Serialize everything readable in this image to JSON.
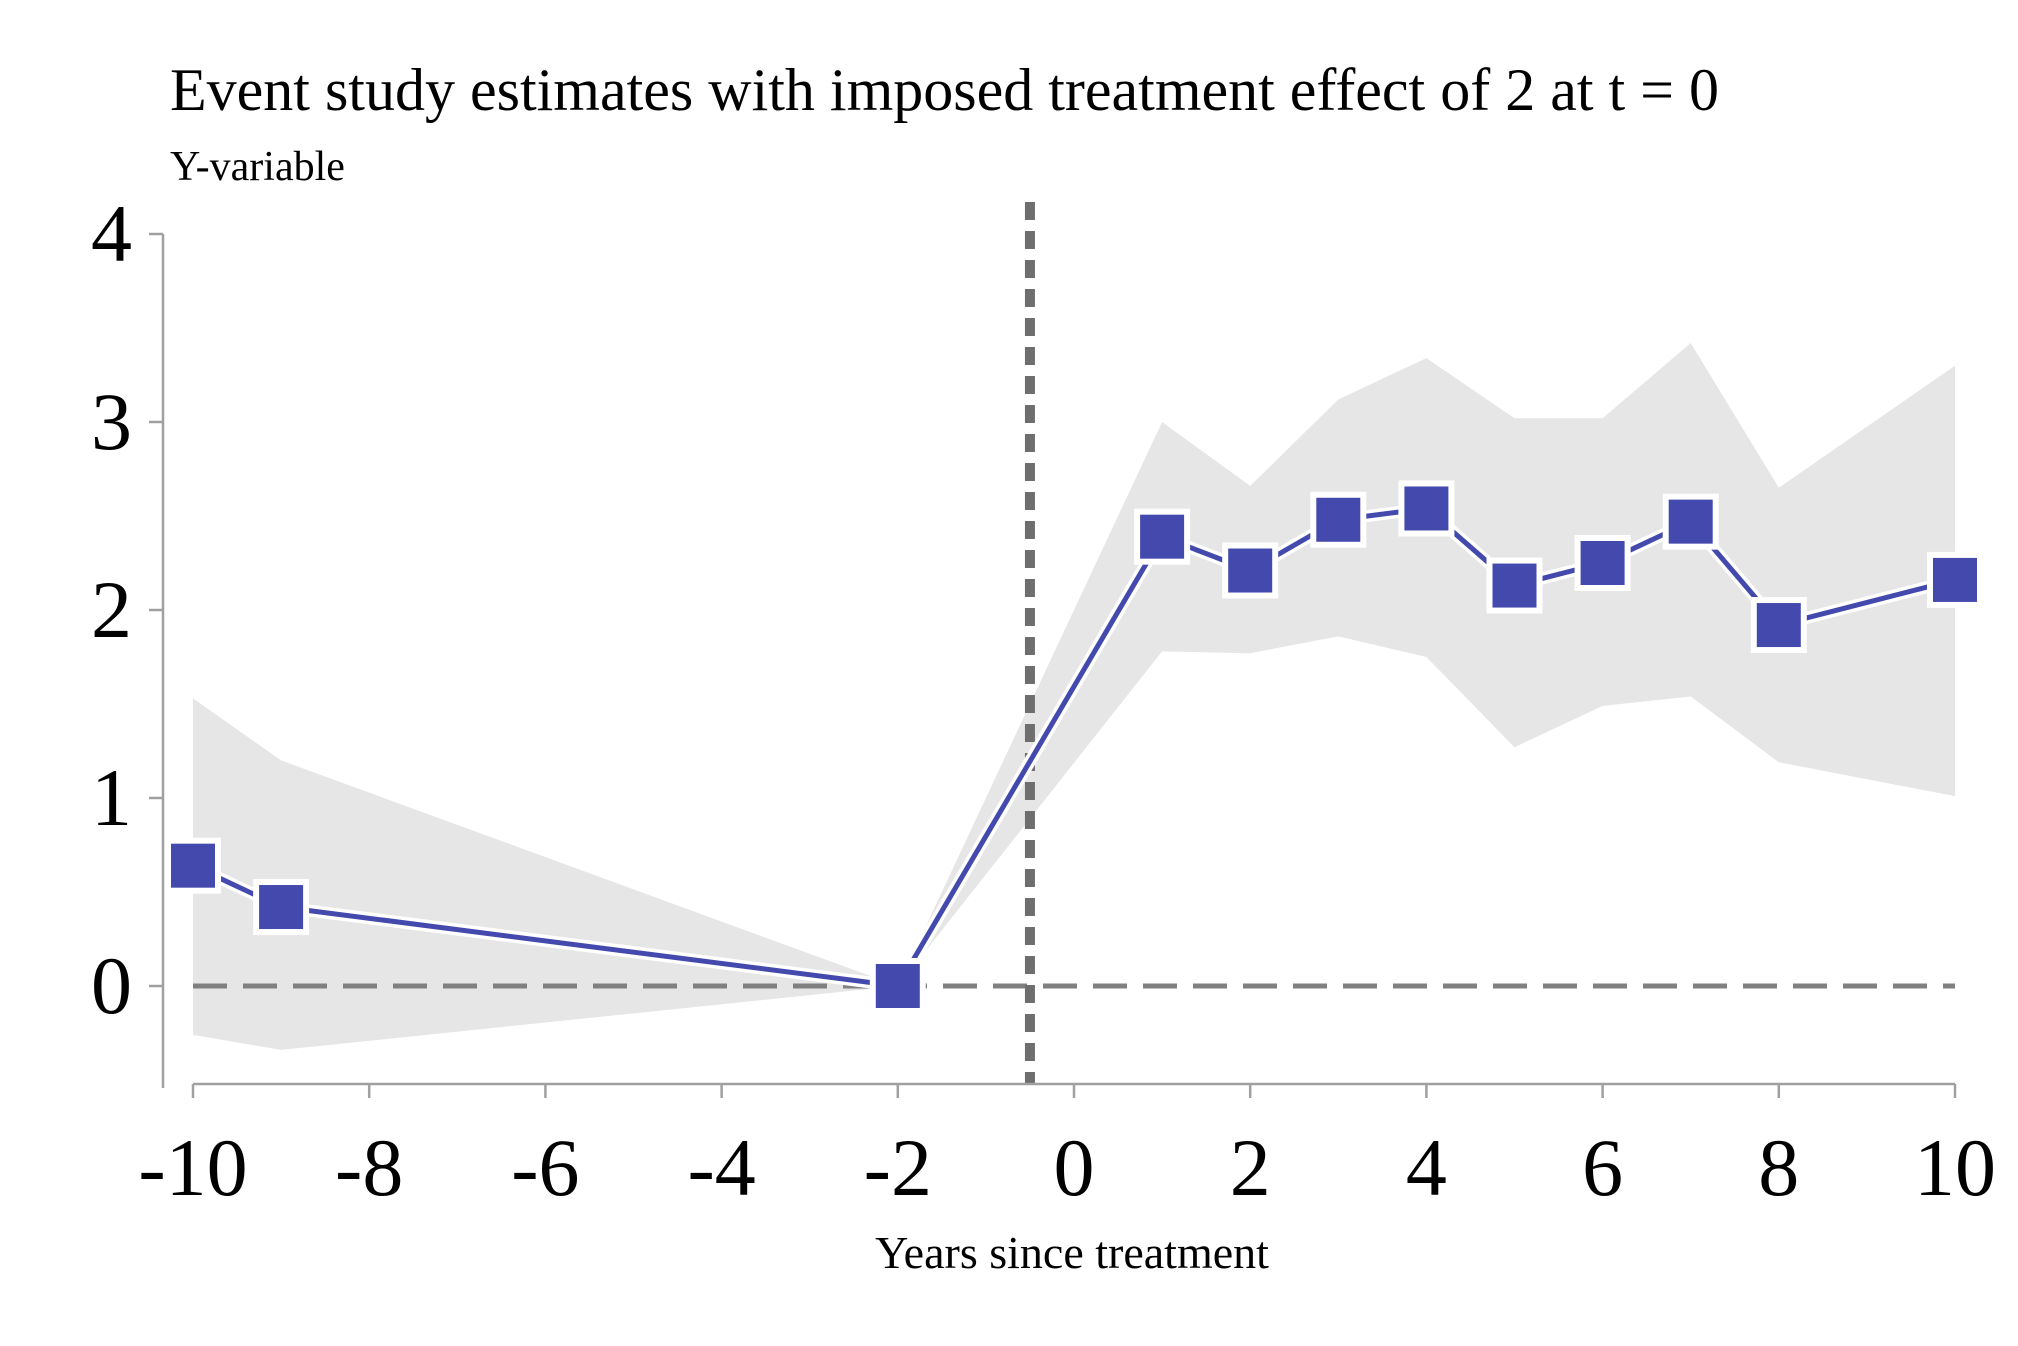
{
  "chart_data": {
    "type": "line",
    "title": "Event study estimates with imposed treatment effect of 2 at t = 0",
    "subtitle": "Y-variable",
    "xlabel": "Years since treatment",
    "ylabel": "",
    "xlim": [
      -10,
      10
    ],
    "ylim": [
      -0.5,
      4
    ],
    "xticks": [
      -10,
      -8,
      -6,
      -4,
      -2,
      0,
      2,
      4,
      6,
      8,
      10
    ],
    "yticks": [
      0,
      1,
      2,
      3,
      4
    ],
    "reference_lines": {
      "horizontal_y": 0,
      "vertical_x": -0.5
    },
    "grid": false,
    "legend": "none",
    "colors": {
      "series": "#4349ad",
      "band": "#e6e6e6",
      "reference": "#808080",
      "vline": "#6e6e6e",
      "axis": "#a0a0a0"
    },
    "series": [
      {
        "x": [
          -10,
          -9,
          -2,
          1,
          2,
          3,
          4,
          5,
          6,
          7,
          8,
          10
        ],
        "values": [
          0.64,
          0.42,
          0.0,
          2.39,
          2.21,
          2.48,
          2.54,
          2.13,
          2.25,
          2.47,
          1.92,
          2.16
        ],
        "ci_lower": [
          -0.26,
          -0.34,
          0.0,
          1.78,
          1.77,
          1.86,
          1.75,
          1.27,
          1.49,
          1.54,
          1.19,
          1.01
        ],
        "ci_upper": [
          1.53,
          1.2,
          0.0,
          3.0,
          2.66,
          3.12,
          3.34,
          3.02,
          3.02,
          3.42,
          2.65,
          3.3
        ]
      }
    ]
  }
}
